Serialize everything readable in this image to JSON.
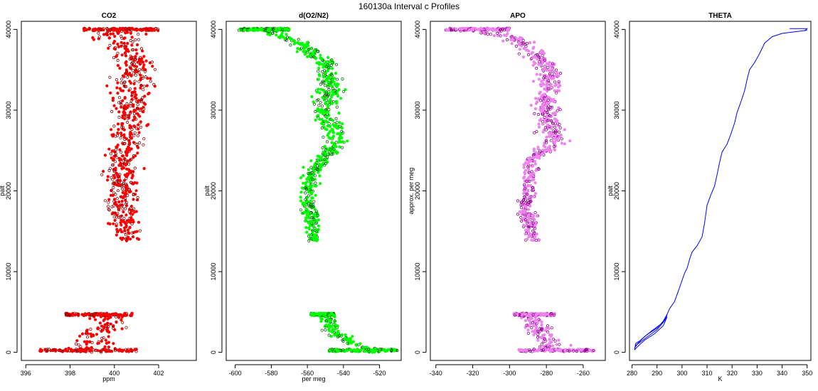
{
  "figure": {
    "title": "160130a   Interval c Profiles"
  },
  "chart_data": [
    {
      "type": "scatter",
      "title": "CO2",
      "xlabel": "ppm",
      "ylabel": "palt",
      "xlim": [
        395.8,
        403.7
      ],
      "ylim": [
        -1000,
        41000
      ],
      "xticks": [
        396,
        398,
        400,
        402
      ],
      "yticks": [
        0,
        10000,
        20000,
        30000,
        40000
      ],
      "colors": {
        "fill": "#ff0000",
        "edge": "#8b0000"
      },
      "profile": [
        {
          "y": 250,
          "center": 398.9,
          "spread": 0.8
        },
        {
          "y": 2500,
          "center": 399.4,
          "spread": 0.6
        },
        {
          "y": 4700,
          "center": 399.8,
          "spread": 0.6
        },
        {
          "y": 13800,
          "center": 400.6,
          "spread": 0.45
        },
        {
          "y": 18000,
          "center": 400.3,
          "spread": 0.5
        },
        {
          "y": 22000,
          "center": 400.3,
          "spread": 0.55
        },
        {
          "y": 28000,
          "center": 400.7,
          "spread": 0.55
        },
        {
          "y": 36000,
          "center": 401.0,
          "spread": 0.6
        },
        {
          "y": 40000,
          "center": 400.0,
          "spread": 0.8
        }
      ],
      "segments": [
        [
          0,
          4700
        ],
        [
          13800,
          40000
        ]
      ],
      "flight_levels": [
        {
          "y": 250,
          "xmin": 396.6,
          "xmax": 401.0
        },
        {
          "y": 4700,
          "xmin": 397.8,
          "xmax": 400.8
        },
        {
          "y": 40000,
          "xmin": 398.6,
          "xmax": 402.0
        }
      ]
    },
    {
      "type": "scatter",
      "title": "d(O2/N2)",
      "xlabel": "per meg",
      "ylabel": "palt",
      "xlim": [
        -605,
        -508
      ],
      "ylim": [
        -1000,
        41000
      ],
      "xticks": [
        -600,
        -580,
        -560,
        -540,
        -520
      ],
      "yticks": [
        0,
        10000,
        20000,
        30000,
        40000
      ],
      "colors": {
        "fill": "#00ff00",
        "edge": "#006400"
      },
      "profile": [
        {
          "y": 250,
          "center": -523,
          "spread": 3
        },
        {
          "y": 1200,
          "center": -535,
          "spread": 4
        },
        {
          "y": 2500,
          "center": -546,
          "spread": 4
        },
        {
          "y": 4700,
          "center": -550,
          "spread": 4
        },
        {
          "y": 14000,
          "center": -556,
          "spread": 3
        },
        {
          "y": 17000,
          "center": -558,
          "spread": 3
        },
        {
          "y": 20000,
          "center": -560,
          "spread": 3
        },
        {
          "y": 23000,
          "center": -556,
          "spread": 3
        },
        {
          "y": 26000,
          "center": -543,
          "spread": 4
        },
        {
          "y": 30000,
          "center": -550,
          "spread": 5
        },
        {
          "y": 33000,
          "center": -546,
          "spread": 5
        },
        {
          "y": 36000,
          "center": -551,
          "spread": 4
        },
        {
          "y": 38500,
          "center": -566,
          "spread": 4
        },
        {
          "y": 40000,
          "center": -585,
          "spread": 5
        }
      ],
      "segments": [
        [
          0,
          4700
        ],
        [
          13800,
          40000
        ]
      ],
      "flight_levels": [
        {
          "y": 250,
          "xmin": -548,
          "xmax": -510
        },
        {
          "y": 4700,
          "xmin": -558,
          "xmax": -545
        },
        {
          "y": 40000,
          "xmin": -598,
          "xmax": -570
        }
      ]
    },
    {
      "type": "scatter",
      "title": "APO",
      "xlabel": "",
      "ylabel": "approx. per meg",
      "xlim": [
        -343,
        -248
      ],
      "ylim": [
        -1000,
        41000
      ],
      "xticks": [
        -340,
        -320,
        -300,
        -280,
        -260
      ],
      "yticks": [
        0,
        10000,
        20000,
        30000,
        40000
      ],
      "colors": {
        "fill": "#ee82ee",
        "edge": "#8b008b"
      },
      "profile": [
        {
          "y": 250,
          "center": -275,
          "spread": 6
        },
        {
          "y": 2500,
          "center": -285,
          "spread": 5
        },
        {
          "y": 4700,
          "center": -288,
          "spread": 5
        },
        {
          "y": 14000,
          "center": -287,
          "spread": 3
        },
        {
          "y": 18000,
          "center": -291,
          "spread": 3
        },
        {
          "y": 21000,
          "center": -290,
          "spread": 3
        },
        {
          "y": 24000,
          "center": -287,
          "spread": 3
        },
        {
          "y": 26000,
          "center": -276,
          "spread": 5
        },
        {
          "y": 30000,
          "center": -281,
          "spread": 5
        },
        {
          "y": 34000,
          "center": -278,
          "spread": 5
        },
        {
          "y": 37000,
          "center": -285,
          "spread": 5
        },
        {
          "y": 39000,
          "center": -297,
          "spread": 5
        },
        {
          "y": 40000,
          "center": -320,
          "spread": 10
        }
      ],
      "segments": [
        [
          0,
          4700
        ],
        [
          13800,
          40000
        ]
      ],
      "flight_levels": [
        {
          "y": 250,
          "xmin": -295,
          "xmax": -254
        },
        {
          "y": 4700,
          "xmin": -298,
          "xmax": -275
        },
        {
          "y": 40000,
          "xmin": -335,
          "xmax": -300
        }
      ]
    },
    {
      "type": "line",
      "title": "THETA",
      "xlabel": "K",
      "ylabel": "palt",
      "xlim": [
        279,
        351.5
      ],
      "ylim": [
        -1000,
        41000
      ],
      "xticks": [
        280,
        290,
        300,
        310,
        320,
        330,
        340,
        350
      ],
      "yticks": [
        0,
        10000,
        20000,
        30000,
        40000
      ],
      "colors": {
        "line": "#0000ff"
      },
      "series": [
        {
          "values": [
            [
              281,
              300
            ],
            [
              281.5,
              1100
            ],
            [
              283,
              1400
            ],
            [
              286,
              2200
            ],
            [
              290,
              3000
            ],
            [
              293.5,
              4200
            ],
            [
              294,
              4700
            ],
            [
              295,
              5400
            ],
            [
              297,
              6300
            ],
            [
              299,
              8000
            ],
            [
              301,
              9800
            ],
            [
              302,
              10400
            ],
            [
              303,
              11500
            ],
            [
              304,
              12400
            ],
            [
              306,
              13200
            ],
            [
              308,
              14300
            ],
            [
              309,
              16000
            ],
            [
              310,
              18200
            ],
            [
              311.5,
              19500
            ],
            [
              313,
              20600
            ],
            [
              314,
              22000
            ],
            [
              315,
              23500
            ],
            [
              316,
              24800
            ],
            [
              318,
              25800
            ],
            [
              319.5,
              27000
            ],
            [
              321,
              28400
            ],
            [
              322,
              29700
            ],
            [
              323.5,
              31000
            ],
            [
              325,
              32400
            ],
            [
              326,
              33800
            ],
            [
              327,
              35000
            ],
            [
              329,
              35900
            ],
            [
              331,
              37000
            ],
            [
              333,
              38300
            ],
            [
              336,
              39100
            ],
            [
              340,
              39500
            ],
            [
              345,
              39700
            ],
            [
              350,
              39900
            ]
          ]
        },
        {
          "values": [
            [
              281,
              500
            ],
            [
              282,
              1000
            ],
            [
              284.5,
              1800
            ],
            [
              288,
              2700
            ],
            [
              292,
              3600
            ],
            [
              294,
              4700
            ]
          ]
        },
        {
          "values": [
            [
              281.2,
              800
            ],
            [
              283,
              1200
            ],
            [
              286,
              1900
            ],
            [
              290,
              2800
            ],
            [
              293,
              3900
            ],
            [
              294,
              4600
            ]
          ]
        },
        {
          "values": [
            [
              281,
              300
            ],
            [
              282.5,
              800
            ],
            [
              285,
              1500
            ],
            [
              289,
              2300
            ],
            [
              292.5,
              3300
            ],
            [
              294,
              4400
            ]
          ]
        },
        {
          "values": [
            [
              343,
              40100
            ],
            [
              350,
              40100
            ],
            [
              349,
              39800
            ]
          ]
        }
      ]
    }
  ]
}
